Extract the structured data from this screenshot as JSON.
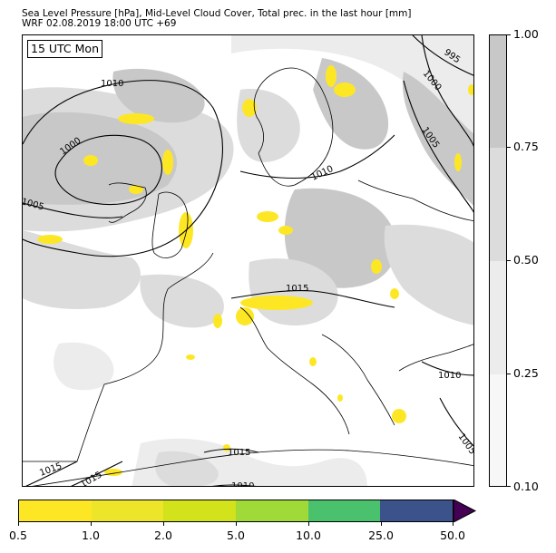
{
  "title": {
    "line1": "Sea Level Pressure [hPa], Mid-Level Cloud Cover, Total prec. in the last hour [mm]",
    "line2": "WRF 02.08.2019 18:00 UTC +69"
  },
  "map": {
    "valid_time": "15 UTC Mon",
    "isobar_labels": [
      {
        "text": "1010"
      },
      {
        "text": "1000"
      },
      {
        "text": "1005"
      },
      {
        "text": "995"
      },
      {
        "text": "1000"
      },
      {
        "text": "1005"
      },
      {
        "text": "1010"
      },
      {
        "text": "1015"
      },
      {
        "text": "1010"
      },
      {
        "text": "1005"
      },
      {
        "text": "1015"
      },
      {
        "text": "1015"
      },
      {
        "text": "1015"
      },
      {
        "text": "1010"
      }
    ],
    "colors": {
      "cloud_light": "#f0f0f0",
      "cloud_mid": "#dcdcdc",
      "cloud_dark": "#c8c8c8",
      "precip": "#fde725",
      "coast": "#000000"
    }
  },
  "cloud_colorbar": {
    "levels": [
      "1.00",
      "0.75",
      "0.50",
      "0.25",
      "0.10"
    ],
    "colors": [
      "#c8c8c8",
      "#dcdcdc",
      "#ececec",
      "#f7f7f7"
    ]
  },
  "precip_colorbar": {
    "levels": [
      "0.5",
      "1.0",
      "2.0",
      "5.0",
      "10.0",
      "25.0",
      "50.0"
    ],
    "colors": [
      "#fde725",
      "#ece52a",
      "#d2e21b",
      "#a0da39",
      "#4ac16d",
      "#2db27d",
      "#3b528b"
    ],
    "extend_color": "#440154"
  }
}
